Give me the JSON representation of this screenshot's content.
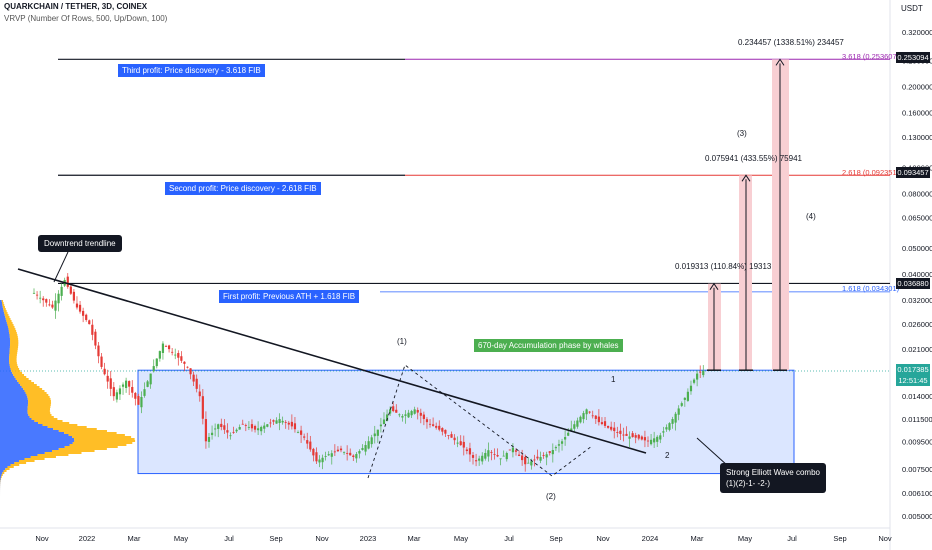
{
  "header": {
    "title": "QUARKCHAIN / TETHER, 3D, COINEX",
    "indicator": "VRVP (Number Of Rows, 500, Up/Down, 100)",
    "currency": "USDT"
  },
  "annotations": {
    "third_profit": "Third profit: Price discovery - 3.618 FIB",
    "second_profit": "Second profit: Price discovery - 2.618 FIB",
    "first_profit": "First profit: Previous ATH + 1.618 FIB",
    "downtrend": "Downtrend trendline",
    "accumulation": "670-day Accumulation phase by whales",
    "elliott": "Strong Elliott Wave combo\n(1)(2)-1- -2-)",
    "wave_1_paren": "(1)",
    "wave_2_paren": "(2)",
    "wave_3_paren": "(3)",
    "wave_4_paren": "(4)",
    "wave_1": "1",
    "wave_2": "2",
    "meas_1": "0.019313 (110.84%) 19313",
    "meas_2": "0.075941 (433.55%) 75941",
    "meas_3": "0.234457 (1338.51%) 234457",
    "fib_1618": "1.618 (0.034301)",
    "fib_2618": "2.618 (0.092351)",
    "fib_3618": "3.618 (0.253607)"
  },
  "price_labels": {
    "p253": "0.253094",
    "p093": "0.093457",
    "p036": "0.036880",
    "current": "0.017385",
    "timer": "12:51:45"
  },
  "colors": {
    "accent_blue": "#2962ff",
    "up": "#26a69a",
    "down": "#ef5350",
    "candle_up": "#4caf50",
    "candle_down": "#e53935",
    "accumulation_fill": "#dbe6ff",
    "target_fill": "#f8cfd3",
    "volume_blue": "#2962ff",
    "volume_orange": "#ffb300"
  },
  "chart_data": {
    "type": "candlestick",
    "y_scale": "log",
    "y_ticks": [
      "0.320000",
      "0.250000",
      "0.200000",
      "0.160000",
      "0.130000",
      "0.100000",
      "0.080000",
      "0.065000",
      "0.050000",
      "0.040000",
      "0.032000",
      "0.026000",
      "0.021000",
      "0.014000",
      "0.011500",
      "0.009500",
      "0.007500",
      "0.006100",
      "0.005000"
    ],
    "x_ticks": [
      "Nov",
      "2022",
      "Mar",
      "May",
      "Jul",
      "Sep",
      "Nov",
      "2023",
      "Mar",
      "May",
      "Jul",
      "Sep",
      "Nov",
      "2024",
      "Mar",
      "May",
      "Jul",
      "Sep",
      "Nov"
    ],
    "horizontal_levels": [
      0.253094,
      0.093457,
      0.03688,
      0.034301
    ],
    "accumulation_range": [
      0.0072,
      0.0175
    ],
    "current_price": 0.017385,
    "price_path": [
      [
        0,
        0.034
      ],
      [
        6,
        0.03
      ],
      [
        10,
        0.038
      ],
      [
        14,
        0.03
      ],
      [
        18,
        0.026
      ],
      [
        22,
        0.018
      ],
      [
        26,
        0.014
      ],
      [
        30,
        0.016
      ],
      [
        34,
        0.013
      ],
      [
        38,
        0.017
      ],
      [
        42,
        0.022
      ],
      [
        46,
        0.02
      ],
      [
        50,
        0.018
      ],
      [
        54,
        0.014
      ],
      [
        56,
        0.0095
      ],
      [
        60,
        0.011
      ],
      [
        64,
        0.01
      ],
      [
        68,
        0.011
      ],
      [
        72,
        0.0105
      ],
      [
        76,
        0.011
      ],
      [
        80,
        0.0115
      ],
      [
        84,
        0.0108
      ],
      [
        88,
        0.0098
      ],
      [
        92,
        0.008
      ],
      [
        96,
        0.0085
      ],
      [
        100,
        0.0088
      ],
      [
        104,
        0.0083
      ],
      [
        108,
        0.0092
      ],
      [
        112,
        0.0105
      ],
      [
        116,
        0.0125
      ],
      [
        120,
        0.0118
      ],
      [
        124,
        0.0125
      ],
      [
        128,
        0.0112
      ],
      [
        132,
        0.0105
      ],
      [
        136,
        0.0098
      ],
      [
        140,
        0.009
      ],
      [
        144,
        0.008
      ],
      [
        148,
        0.0088
      ],
      [
        152,
        0.0082
      ],
      [
        156,
        0.009
      ],
      [
        160,
        0.0078
      ],
      [
        164,
        0.0082
      ],
      [
        168,
        0.0086
      ],
      [
        172,
        0.0095
      ],
      [
        176,
        0.011
      ],
      [
        180,
        0.0125
      ],
      [
        184,
        0.0112
      ],
      [
        188,
        0.0105
      ],
      [
        192,
        0.01
      ],
      [
        196,
        0.0098
      ],
      [
        200,
        0.0095
      ],
      [
        204,
        0.01
      ],
      [
        208,
        0.0115
      ],
      [
        212,
        0.0138
      ],
      [
        216,
        0.017
      ],
      [
        218,
        0.0174
      ]
    ]
  }
}
